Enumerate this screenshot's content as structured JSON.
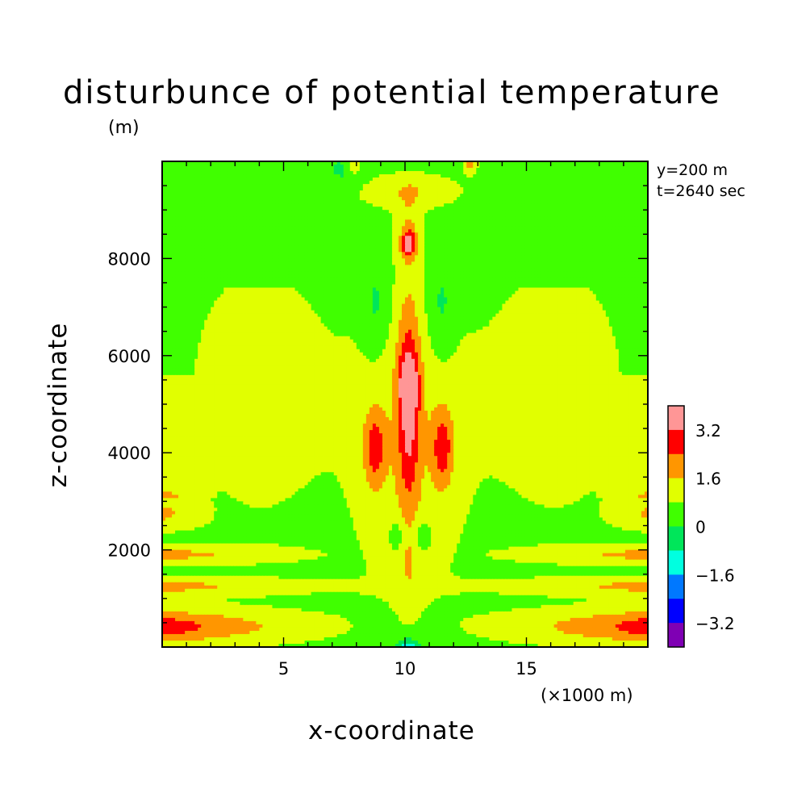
{
  "chart_data": {
    "type": "heatmap",
    "title": "disturbunce of potential temperature",
    "xlabel": "x-coordinate",
    "ylabel": "z-coordinate",
    "x_unit": "(×1000 m)",
    "y_unit": "(m)",
    "annotations": [
      "y=200 m",
      "t=2640 sec"
    ],
    "xlim": [
      0,
      20
    ],
    "ylim": [
      0,
      10000
    ],
    "x_ticks": [
      5,
      10,
      15
    ],
    "y_ticks": [
      2000,
      4000,
      6000,
      8000
    ],
    "colorbar": {
      "placement": "right",
      "levels": [
        -4.0,
        -3.2,
        -2.4,
        -1.6,
        -0.8,
        0,
        0.8,
        1.6,
        2.4,
        3.2,
        4.0
      ],
      "tick_labels": [
        "3.2",
        "1.6",
        "0",
        "−1.6",
        "−3.2"
      ],
      "tick_values": [
        3.2,
        1.6,
        0,
        -1.6,
        -3.2
      ],
      "colors": [
        "#7f00b4",
        "#0000ff",
        "#0078ff",
        "#00ffe0",
        "#00e65a",
        "#40ff00",
        "#e1ff00",
        "#ff9600",
        "#ff0000",
        "#ff9696"
      ]
    },
    "field": {
      "description_of_bands": "filled contours of potential temperature disturbance",
      "background_level": 0.4,
      "features": [
        {
          "kind": "plume_core",
          "x": 10.1,
          "z": 5400,
          "value": 4.2
        },
        {
          "kind": "warm_column",
          "x": 10.1,
          "z_range": [
            3000,
            7000
          ],
          "value": 2.8
        },
        {
          "kind": "upper_bubble",
          "x": 10.2,
          "z": 8300,
          "value": 3.0
        },
        {
          "kind": "side_lobe",
          "x": 8.7,
          "z": 4100,
          "value": 2.6
        },
        {
          "kind": "side_lobe",
          "x": 11.6,
          "z": 4100,
          "value": 2.6
        },
        {
          "kind": "low_level_band",
          "z": 400,
          "value": 2.5
        },
        {
          "kind": "low_level_band",
          "z": 1250,
          "value": 1.9
        },
        {
          "kind": "low_level_band",
          "z": 1900,
          "value": 1.8
        },
        {
          "kind": "edge_band",
          "z": 2700,
          "value": 1.8
        },
        {
          "kind": "broad_warm_region",
          "x": 4.0,
          "z": 5000,
          "value": 1.2
        },
        {
          "kind": "broad_warm_region",
          "x": 16.2,
          "z": 5000,
          "value": 1.2
        },
        {
          "kind": "cool_pocket",
          "x": 8.8,
          "z": 7000,
          "value": -0.3
        },
        {
          "kind": "cool_pocket",
          "x": 11.5,
          "z": 7000,
          "value": -0.3
        },
        {
          "kind": "cool_pocket",
          "x": 10.5,
          "z": 50,
          "value": -1.2
        }
      ]
    }
  }
}
